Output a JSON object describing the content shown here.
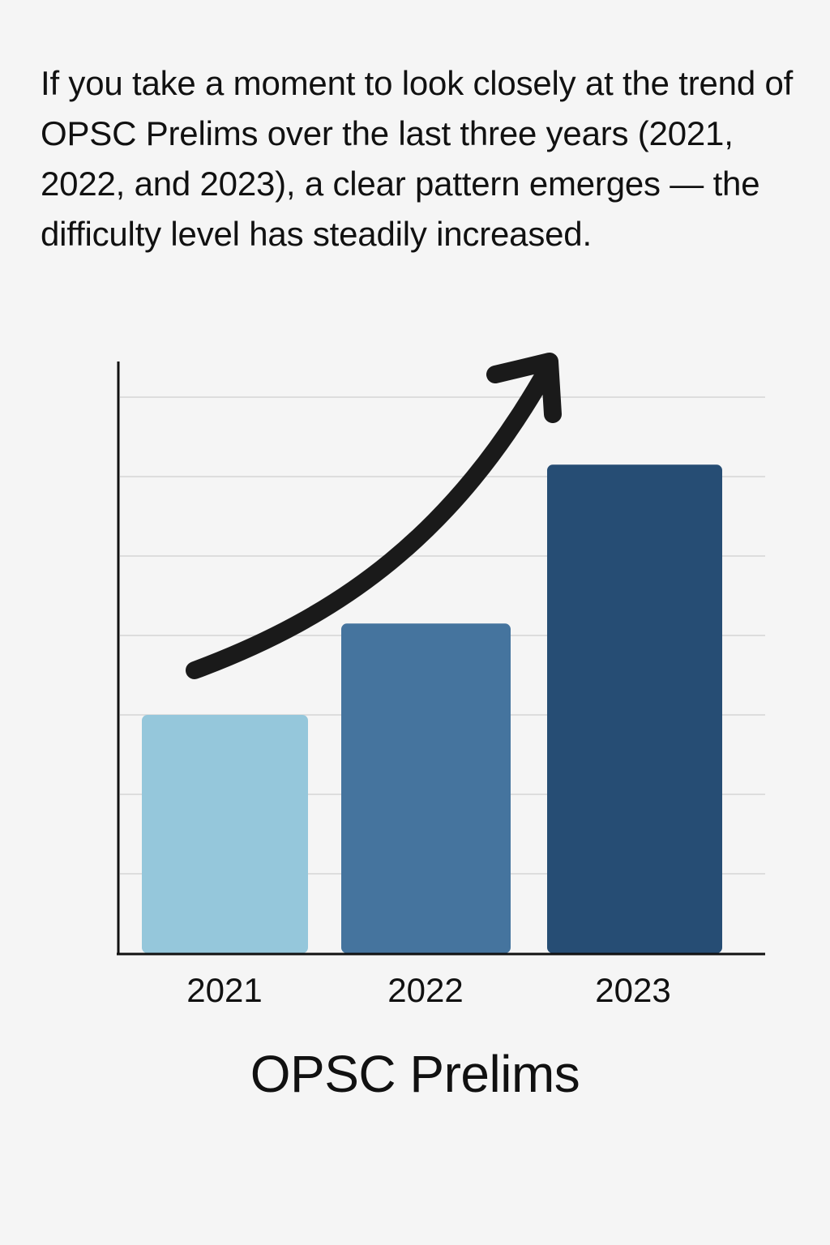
{
  "intro_text": "If you take a moment to look closely at the trend of OPSC Prelims over the last three years (2021, 2022, and 2023), a clear pattern emerges — the difficulty level has steadily increased.",
  "chart_data": {
    "type": "bar",
    "title": "OPSC Prelims",
    "xlabel": "",
    "ylabel": "",
    "categories": [
      "2021",
      "2022",
      "2023"
    ],
    "values": [
      3,
      4.15,
      6.15
    ],
    "ylim": [
      0,
      7
    ],
    "grid": true,
    "legend": "none",
    "bar_colors": [
      "#95c7db",
      "#45749e",
      "#264d74"
    ],
    "axis_color": "#111111",
    "grid_color": "#dddddd",
    "trend_arrow": "upward curved arrow over bars"
  }
}
